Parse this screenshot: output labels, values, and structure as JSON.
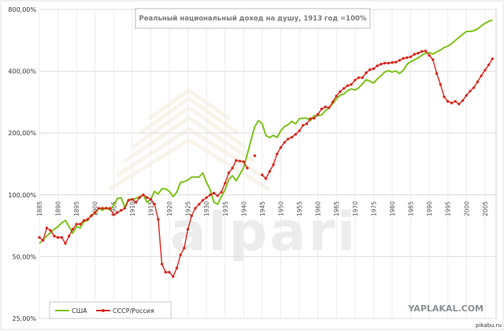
{
  "chart_data": {
    "type": "line",
    "title": "Реальный национальный доход на душу, 1913 год =100%",
    "y_scale": "log",
    "ylim": [
      25,
      800
    ],
    "y_ticks": [
      25,
      50,
      100,
      200,
      400,
      800
    ],
    "y_tick_labels": [
      "25,00%",
      "50,00%",
      "100,00%",
      "200,00%",
      "400,00%",
      "800,00%"
    ],
    "xlim": [
      1885,
      2008
    ],
    "x_ticks": [
      "1885",
      "1890",
      "1895",
      "1900",
      "1905",
      "1910",
      "1915",
      "1920",
      "1925",
      "1930",
      "1935",
      "1940",
      "1945",
      "1950",
      "1955",
      "1960",
      "1965",
      "1970",
      "1975",
      "1980",
      "1985",
      "1990",
      "1995",
      "2000",
      "2005"
    ],
    "grid": true,
    "legend_position": "bottom-left",
    "series": [
      {
        "name": "США",
        "color": "#7dc21a",
        "marker": "none",
        "points": [
          [
            1885,
            58
          ],
          [
            1887,
            63
          ],
          [
            1889,
            68
          ],
          [
            1890,
            70
          ],
          [
            1891,
            73
          ],
          [
            1892,
            75
          ],
          [
            1893,
            70
          ],
          [
            1894,
            65
          ],
          [
            1895,
            70
          ],
          [
            1896,
            69
          ],
          [
            1897,
            74
          ],
          [
            1898,
            75
          ],
          [
            1899,
            80
          ],
          [
            1900,
            81
          ],
          [
            1901,
            86
          ],
          [
            1902,
            84
          ],
          [
            1903,
            87
          ],
          [
            1904,
            84
          ],
          [
            1905,
            89
          ],
          [
            1906,
            96
          ],
          [
            1907,
            97
          ],
          [
            1908,
            87
          ],
          [
            1909,
            95
          ],
          [
            1910,
            95
          ],
          [
            1911,
            96
          ],
          [
            1912,
            98
          ],
          [
            1913,
            100
          ],
          [
            1914,
            92
          ],
          [
            1915,
            95
          ],
          [
            1916,
            104
          ],
          [
            1917,
            101
          ],
          [
            1918,
            107
          ],
          [
            1919,
            107
          ],
          [
            1920,
            104
          ],
          [
            1921,
            98
          ],
          [
            1922,
            103
          ],
          [
            1923,
            115
          ],
          [
            1924,
            116
          ],
          [
            1925,
            118
          ],
          [
            1926,
            122
          ],
          [
            1927,
            122
          ],
          [
            1928,
            122
          ],
          [
            1929,
            128
          ],
          [
            1930,
            115
          ],
          [
            1931,
            106
          ],
          [
            1932,
            92
          ],
          [
            1933,
            90
          ],
          [
            1934,
            98
          ],
          [
            1935,
            106
          ],
          [
            1936,
            119
          ],
          [
            1937,
            124
          ],
          [
            1938,
            117
          ],
          [
            1939,
            126
          ],
          [
            1940,
            135
          ],
          [
            1941,
            158
          ],
          [
            1942,
            185
          ],
          [
            1943,
            215
          ],
          [
            1944,
            230
          ],
          [
            1945,
            222
          ],
          [
            1946,
            195
          ],
          [
            1947,
            190
          ],
          [
            1948,
            195
          ],
          [
            1949,
            190
          ],
          [
            1950,
            205
          ],
          [
            1951,
            215
          ],
          [
            1952,
            220
          ],
          [
            1953,
            228
          ],
          [
            1954,
            222
          ],
          [
            1955,
            235
          ],
          [
            1956,
            236
          ],
          [
            1957,
            236
          ],
          [
            1958,
            230
          ],
          [
            1959,
            243
          ],
          [
            1960,
            243
          ],
          [
            1961,
            245
          ],
          [
            1962,
            257
          ],
          [
            1963,
            265
          ],
          [
            1964,
            278
          ],
          [
            1965,
            293
          ],
          [
            1966,
            306
          ],
          [
            1967,
            310
          ],
          [
            1968,
            322
          ],
          [
            1969,
            328
          ],
          [
            1970,
            324
          ],
          [
            1971,
            332
          ],
          [
            1972,
            347
          ],
          [
            1973,
            364
          ],
          [
            1974,
            358
          ],
          [
            1975,
            350
          ],
          [
            1976,
            367
          ],
          [
            1977,
            380
          ],
          [
            1978,
            396
          ],
          [
            1979,
            402
          ],
          [
            1980,
            396
          ],
          [
            1981,
            401
          ],
          [
            1982,
            390
          ],
          [
            1983,
            405
          ],
          [
            1984,
            432
          ],
          [
            1985,
            445
          ],
          [
            1986,
            455
          ],
          [
            1987,
            465
          ],
          [
            1988,
            478
          ],
          [
            1989,
            490
          ],
          [
            1990,
            493
          ],
          [
            1991,
            485
          ],
          [
            1992,
            497
          ],
          [
            1993,
            507
          ],
          [
            1994,
            522
          ],
          [
            1995,
            530
          ],
          [
            1996,
            545
          ],
          [
            1997,
            565
          ],
          [
            1998,
            585
          ],
          [
            1999,
            605
          ],
          [
            2000,
            625
          ],
          [
            2001,
            625
          ],
          [
            2002,
            630
          ],
          [
            2003,
            643
          ],
          [
            2004,
            665
          ],
          [
            2005,
            685
          ],
          [
            2006,
            700
          ],
          [
            2007,
            710
          ]
        ]
      },
      {
        "name": "СССР/Россия",
        "color": "#d9261c",
        "marker": "circle",
        "points": [
          [
            1885,
            62
          ],
          [
            1886,
            60
          ],
          [
            1887,
            69
          ],
          [
            1888,
            67
          ],
          [
            1889,
            63
          ],
          [
            1890,
            62
          ],
          [
            1891,
            62
          ],
          [
            1892,
            58
          ],
          [
            1893,
            63
          ],
          [
            1894,
            68
          ],
          [
            1895,
            72
          ],
          [
            1896,
            72
          ],
          [
            1897,
            75
          ],
          [
            1898,
            76
          ],
          [
            1899,
            79
          ],
          [
            1900,
            82
          ],
          [
            1901,
            86
          ],
          [
            1902,
            86
          ],
          [
            1903,
            86
          ],
          [
            1904,
            86
          ],
          [
            1905,
            80
          ],
          [
            1906,
            82
          ],
          [
            1907,
            84
          ],
          [
            1908,
            86
          ],
          [
            1909,
            94
          ],
          [
            1910,
            95
          ],
          [
            1911,
            92
          ],
          [
            1912,
            97
          ],
          [
            1913,
            100
          ],
          [
            1914,
            97
          ],
          [
            1915,
            95
          ],
          [
            1916,
            90
          ],
          [
            1917,
            76
          ],
          [
            1918,
            46
          ],
          [
            1919,
            42
          ],
          [
            1920,
            42
          ],
          [
            1921,
            40
          ],
          [
            1922,
            44
          ],
          [
            1923,
            51
          ],
          [
            1924,
            55
          ],
          [
            1925,
            68
          ],
          [
            1926,
            79
          ],
          [
            1927,
            86
          ],
          [
            1928,
            90
          ],
          [
            1929,
            94
          ],
          [
            1930,
            97
          ],
          [
            1931,
            100
          ],
          [
            1932,
            102
          ],
          [
            1933,
            99
          ],
          [
            1934,
            103
          ],
          [
            1935,
            114
          ],
          [
            1936,
            128
          ],
          [
            1937,
            135
          ],
          [
            1938,
            147
          ],
          [
            1939,
            146
          ],
          [
            1940,
            145
          ],
          [
            1941,
            135
          ],
          [
            1943,
            155
          ],
          [
            1945,
            125
          ],
          [
            1946,
            120
          ],
          [
            1947,
            130
          ],
          [
            1948,
            140
          ],
          [
            1949,
            158
          ],
          [
            1950,
            170
          ],
          [
            1951,
            180
          ],
          [
            1952,
            187
          ],
          [
            1953,
            191
          ],
          [
            1954,
            197
          ],
          [
            1955,
            205
          ],
          [
            1956,
            218
          ],
          [
            1957,
            222
          ],
          [
            1958,
            235
          ],
          [
            1959,
            236
          ],
          [
            1960,
            247
          ],
          [
            1961,
            262
          ],
          [
            1962,
            268
          ],
          [
            1963,
            266
          ],
          [
            1964,
            283
          ],
          [
            1965,
            303
          ],
          [
            1966,
            318
          ],
          [
            1967,
            330
          ],
          [
            1968,
            340
          ],
          [
            1969,
            345
          ],
          [
            1970,
            362
          ],
          [
            1971,
            372
          ],
          [
            1972,
            372
          ],
          [
            1973,
            393
          ],
          [
            1974,
            407
          ],
          [
            1975,
            411
          ],
          [
            1976,
            425
          ],
          [
            1977,
            433
          ],
          [
            1978,
            438
          ],
          [
            1979,
            438
          ],
          [
            1980,
            441
          ],
          [
            1981,
            443
          ],
          [
            1982,
            452
          ],
          [
            1983,
            462
          ],
          [
            1984,
            466
          ],
          [
            1985,
            470
          ],
          [
            1986,
            484
          ],
          [
            1987,
            490
          ],
          [
            1988,
            499
          ],
          [
            1989,
            502
          ],
          [
            1990,
            478
          ],
          [
            1991,
            455
          ],
          [
            1992,
            390
          ],
          [
            1993,
            345
          ],
          [
            1994,
            300
          ],
          [
            1995,
            285
          ],
          [
            1996,
            280
          ],
          [
            1997,
            285
          ],
          [
            1998,
            277
          ],
          [
            1999,
            288
          ],
          [
            2000,
            305
          ],
          [
            2001,
            320
          ],
          [
            2002,
            333
          ],
          [
            2003,
            355
          ],
          [
            2004,
            380
          ],
          [
            2005,
            405
          ],
          [
            2006,
            430
          ],
          [
            2007,
            460
          ]
        ]
      }
    ]
  },
  "watermarks": {
    "center_logo_text": "alpari",
    "site_text": "YAPLAKAL.COM",
    "corner_text": "pikabu.ru"
  }
}
